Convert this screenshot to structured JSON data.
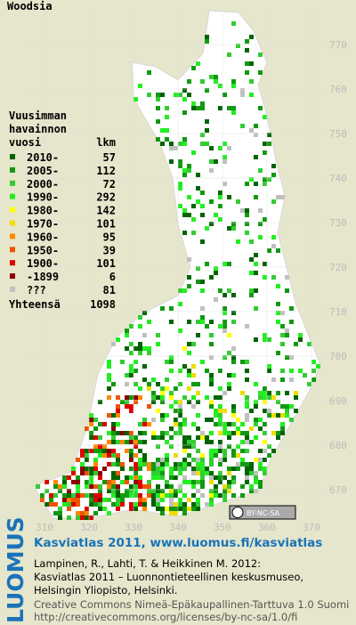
{
  "title": "Woodsia",
  "legend": {
    "heading": [
      "Vuusimman",
      "havainnon",
      "vuosi"
    ],
    "count_heading": "lkm",
    "entries": [
      {
        "label": "2010-",
        "count": 57,
        "color": "#006400"
      },
      {
        "label": "2005-",
        "count": 112,
        "color": "#119911"
      },
      {
        "label": "2000-",
        "count": 72,
        "color": "#33cc33"
      },
      {
        "label": "1990-",
        "count": 292,
        "color": "#22ee22"
      },
      {
        "label": "1980-",
        "count": 142,
        "color": "#ffff00"
      },
      {
        "label": "1970-",
        "count": 101,
        "color": "#eedd00"
      },
      {
        "label": "1960-",
        "count": 95,
        "color": "#ff8800"
      },
      {
        "label": "1950-",
        "count": 39,
        "color": "#ee5500"
      },
      {
        "label": "1900-",
        "count": 101,
        "color": "#dd0000"
      },
      {
        "label": "-1899",
        "count": 6,
        "color": "#880000"
      },
      {
        "label": "???",
        "count": 81,
        "color": "#c0c0c0"
      }
    ],
    "total": {
      "label": "Yhteensä",
      "value": 1098
    }
  },
  "grid": {
    "x_labels": [
      310,
      320,
      330,
      340,
      350,
      360,
      370
    ],
    "y_labels": [
      670,
      680,
      690,
      700,
      710,
      720,
      730,
      740,
      750,
      760,
      770
    ]
  },
  "license_badge": "BY-NC-SA",
  "footer": {
    "logo": "LUOMUS",
    "title": "Kasviatlas 2011, www.luomus.fi/kasviatlas",
    "citation": [
      "Lampinen, R., Lahti, T. & Heikkinen M. 2012:",
      "Kasviatlas 2011 – Luonnontieteellinen keskusmuseo,",
      "Helsingin Yliopisto, Helsinki."
    ],
    "license": [
      "Creative Commons Nimeä-Epäkaupallinen-Tarttuva 1.0 Suomi",
      "http://creativecommons.org/licenses/by-nc-sa/1.0/fi"
    ]
  }
}
